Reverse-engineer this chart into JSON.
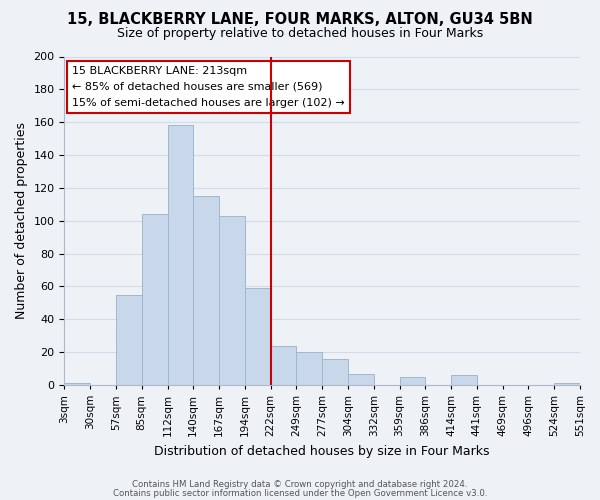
{
  "title": "15, BLACKBERRY LANE, FOUR MARKS, ALTON, GU34 5BN",
  "subtitle": "Size of property relative to detached houses in Four Marks",
  "xlabel": "Distribution of detached houses by size in Four Marks",
  "ylabel": "Number of detached properties",
  "bin_labels": [
    "3sqm",
    "30sqm",
    "57sqm",
    "85sqm",
    "112sqm",
    "140sqm",
    "167sqm",
    "194sqm",
    "222sqm",
    "249sqm",
    "277sqm",
    "304sqm",
    "332sqm",
    "359sqm",
    "386sqm",
    "414sqm",
    "441sqm",
    "469sqm",
    "496sqm",
    "524sqm",
    "551sqm"
  ],
  "bar_heights": [
    1,
    0,
    55,
    104,
    158,
    115,
    103,
    59,
    24,
    20,
    16,
    7,
    0,
    5,
    0,
    6,
    0,
    0,
    0,
    1
  ],
  "bar_color": "#c8d8ea",
  "bar_edge_color": "#a0b8cc",
  "vline_x": 8,
  "vline_color": "#cc0000",
  "annotation_title": "15 BLACKBERRY LANE: 213sqm",
  "annotation_line1": "← 85% of detached houses are smaller (569)",
  "annotation_line2": "15% of semi-detached houses are larger (102) →",
  "annotation_box_color": "#ffffff",
  "annotation_border_color": "#cc0000",
  "footer1": "Contains HM Land Registry data © Crown copyright and database right 2024.",
  "footer2": "Contains public sector information licensed under the Open Government Licence v3.0.",
  "ylim": [
    0,
    200
  ],
  "yticks": [
    0,
    20,
    40,
    60,
    80,
    100,
    120,
    140,
    160,
    180,
    200
  ],
  "grid_color": "#d0dce8",
  "background_color": "#eef2f7"
}
